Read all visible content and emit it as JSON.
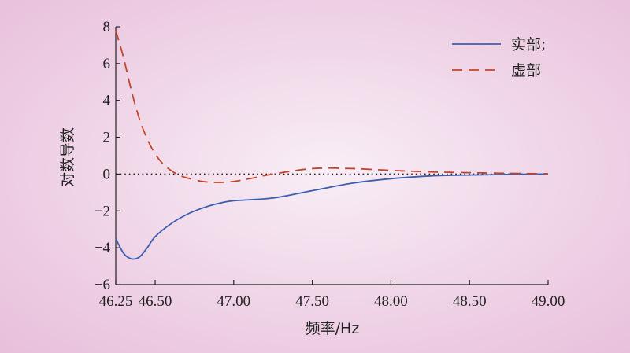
{
  "chart_data": {
    "type": "line",
    "xlabel": "频率/Hz",
    "ylabel": "对数导数",
    "xlim": [
      46.25,
      49.0
    ],
    "ylim": [
      -6,
      8
    ],
    "x_ticks": [
      "46.25",
      "46.50",
      "47.00",
      "47.50",
      "48.00",
      "48.50",
      "49.00"
    ],
    "y_ticks": [
      "8",
      "6",
      "4",
      "2",
      "0",
      "−2",
      "−4",
      "−6"
    ],
    "zero_line": true,
    "legend_position": "top-right",
    "series": [
      {
        "name": "实部;",
        "style": "solid",
        "color": "#3b5fad",
        "x": [
          46.25,
          46.3,
          46.35,
          46.4,
          46.45,
          46.5,
          46.6,
          46.7,
          46.8,
          46.9,
          47.0,
          47.25,
          47.5,
          47.75,
          48.0,
          48.25,
          48.5,
          48.75,
          49.0
        ],
        "y": [
          -3.5,
          -4.3,
          -4.6,
          -4.5,
          -4.0,
          -3.4,
          -2.7,
          -2.2,
          -1.85,
          -1.6,
          -1.45,
          -1.3,
          -0.9,
          -0.5,
          -0.25,
          -0.1,
          -0.05,
          -0.02,
          0.0
        ]
      },
      {
        "name": "虚部",
        "style": "dashed",
        "color": "#c0462b",
        "x": [
          46.25,
          46.3,
          46.35,
          46.4,
          46.45,
          46.5,
          46.55,
          46.6,
          46.65,
          46.7,
          46.8,
          46.9,
          47.0,
          47.1,
          47.25,
          47.5,
          47.75,
          48.0,
          48.25,
          48.5,
          48.75,
          49.0
        ],
        "y": [
          7.8,
          6.3,
          4.5,
          3.0,
          1.9,
          1.1,
          0.55,
          0.2,
          -0.05,
          -0.2,
          -0.4,
          -0.45,
          -0.4,
          -0.25,
          0.0,
          0.3,
          0.3,
          0.2,
          0.12,
          0.08,
          0.04,
          0.02
        ]
      }
    ]
  }
}
